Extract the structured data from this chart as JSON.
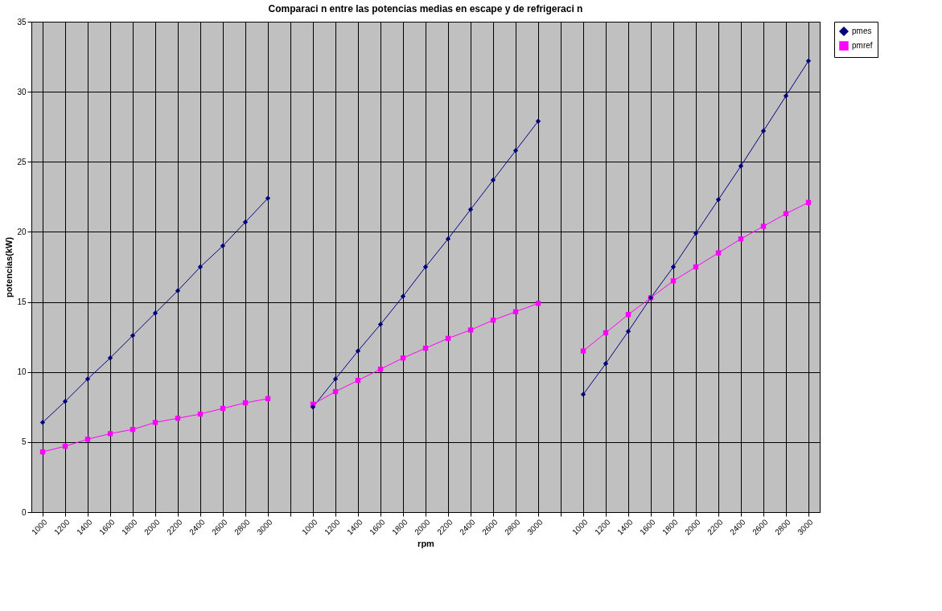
{
  "chart_data": {
    "type": "line",
    "title": "Comparaci n entre las potencias medias en escape y de refrigeraci n",
    "xlabel": "rpm",
    "ylabel": "potencias(kW)",
    "categories": [
      "1000",
      "1200",
      "1400",
      "1600",
      "1800",
      "2000",
      "2200",
      "2400",
      "2600",
      "2800",
      "3000",
      null,
      "1000",
      "1200",
      "1400",
      "1600",
      "1800",
      "2000",
      "2200",
      "2400",
      "2600",
      "2800",
      "3000",
      null,
      "1000",
      "1200",
      "1400",
      "1600",
      "1800",
      "2000",
      "2200",
      "2400",
      "2600",
      "2800",
      "3000"
    ],
    "series": [
      {
        "name": "pmes",
        "color": "#000080",
        "marker": "diamond",
        "values": [
          6.4,
          7.9,
          9.5,
          11.0,
          12.6,
          14.2,
          15.8,
          17.5,
          19.0,
          20.7,
          22.4,
          null,
          7.5,
          9.5,
          11.5,
          13.4,
          15.4,
          17.5,
          19.5,
          21.6,
          23.7,
          25.8,
          27.9,
          null,
          8.4,
          10.6,
          12.9,
          15.3,
          17.5,
          19.9,
          22.3,
          24.7,
          27.2,
          29.7,
          32.2
        ]
      },
      {
        "name": "pmref",
        "color": "#ff00ff",
        "marker": "square",
        "values": [
          4.3,
          4.7,
          5.2,
          5.6,
          5.9,
          6.4,
          6.7,
          7.0,
          7.4,
          7.8,
          8.1,
          null,
          7.7,
          8.6,
          9.4,
          10.2,
          11.0,
          11.7,
          12.4,
          13.0,
          13.7,
          14.3,
          14.9,
          null,
          11.5,
          12.8,
          14.1,
          15.3,
          16.5,
          17.5,
          18.5,
          19.5,
          20.4,
          21.3,
          22.1
        ]
      }
    ],
    "ylim": [
      0,
      35
    ],
    "yticks": [
      0,
      5,
      10,
      15,
      20,
      25,
      30,
      35
    ],
    "grid": true,
    "legend": "right",
    "line_style": "solid"
  }
}
